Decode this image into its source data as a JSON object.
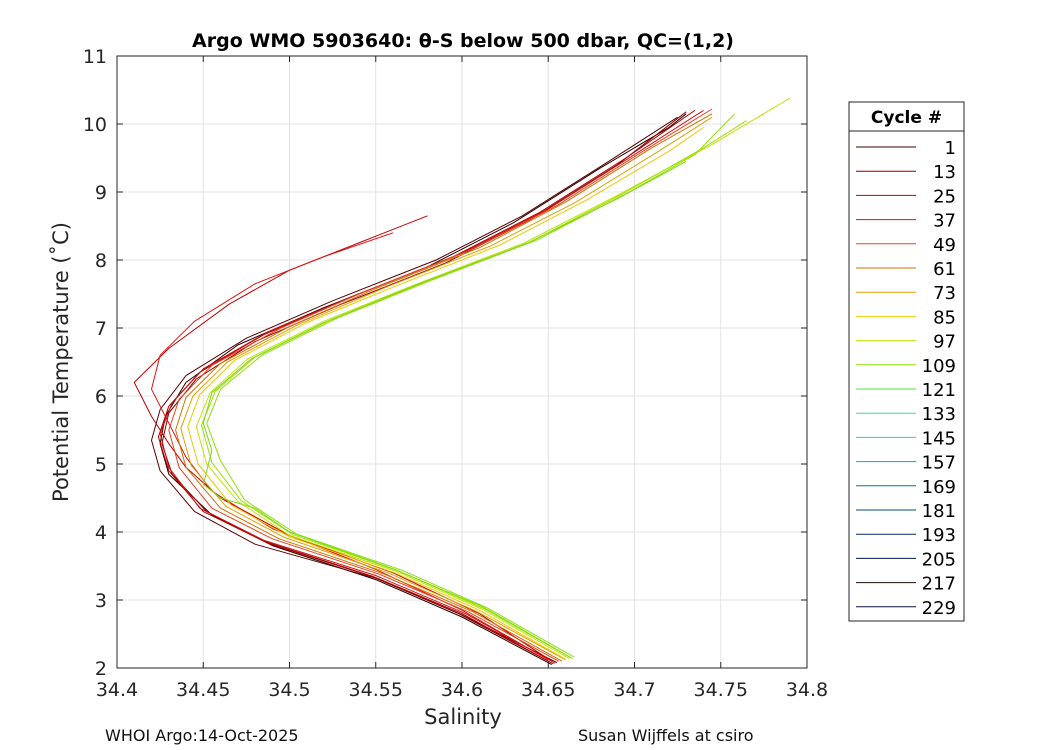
{
  "chart_data": {
    "type": "line",
    "title": "Argo WMO 5903640: θ-S below 500 dbar,  QC=(1,2)",
    "xlabel": "Salinity",
    "ylabel": "Potential Temperature (˚C)",
    "xlim": [
      34.4,
      34.8
    ],
    "ylim": [
      2,
      11
    ],
    "xticks": [
      34.4,
      34.45,
      34.5,
      34.55,
      34.6,
      34.65,
      34.7,
      34.75,
      34.8
    ],
    "xtick_labels": [
      "34.4",
      "34.45",
      "34.5",
      "34.55",
      "34.6",
      "34.65",
      "34.7",
      "34.75",
      "34.8"
    ],
    "yticks": [
      2,
      3,
      4,
      5,
      6,
      7,
      8,
      9,
      10,
      11
    ],
    "ytick_labels": [
      "2",
      "3",
      "4",
      "5",
      "6",
      "7",
      "8",
      "9",
      "10",
      "11"
    ],
    "grid": true,
    "legend": {
      "title": "Cycle #",
      "position": "right",
      "entries": [
        {
          "label": "1",
          "color": "#3a0000"
        },
        {
          "label": "13",
          "color": "#8b0000"
        },
        {
          "label": "25",
          "color": "#c00000"
        },
        {
          "label": "37",
          "color": "#e01010"
        },
        {
          "label": "49",
          "color": "#e8401a"
        },
        {
          "label": "61",
          "color": "#d07000"
        },
        {
          "label": "73",
          "color": "#e0a000"
        },
        {
          "label": "85",
          "color": "#f0d000"
        },
        {
          "label": "97",
          "color": "#c8e000"
        },
        {
          "label": "109",
          "color": "#90e000"
        },
        {
          "label": "121",
          "color": "#50e040"
        },
        {
          "label": "133",
          "color": "#30e0a0"
        },
        {
          "label": "145",
          "color": "#20d0c0"
        },
        {
          "label": "157",
          "color": "#10a8c8"
        },
        {
          "label": "169",
          "color": "#0870a0"
        },
        {
          "label": "181",
          "color": "#084878"
        },
        {
          "label": "193",
          "color": "#0a2a60"
        },
        {
          "label": "205",
          "color": "#061848"
        },
        {
          "label": "217",
          "color": "#200808"
        },
        {
          "label": "229",
          "color": "#0a1040"
        }
      ]
    },
    "series_shape": {
      "deep_end": [
        34.655,
        2.05
      ],
      "minimum": [
        34.43,
        5.5
      ],
      "upper_end": [
        34.74,
        10.2
      ]
    },
    "series": [
      {
        "color": "#2a0000",
        "points": [
          [
            34.652,
            2.05
          ],
          [
            34.6,
            2.75
          ],
          [
            34.55,
            3.3
          ],
          [
            34.49,
            3.8
          ],
          [
            34.455,
            4.25
          ],
          [
            34.43,
            4.85
          ],
          [
            34.425,
            5.3
          ],
          [
            34.428,
            5.7
          ],
          [
            34.44,
            6.2
          ],
          [
            34.47,
            6.75
          ],
          [
            34.52,
            7.3
          ],
          [
            34.58,
            7.9
          ],
          [
            34.63,
            8.55
          ],
          [
            34.68,
            9.35
          ],
          [
            34.72,
            9.95
          ],
          [
            34.73,
            10.15
          ]
        ]
      },
      {
        "color": "#5a0000",
        "points": [
          [
            34.655,
            2.08
          ],
          [
            34.6,
            2.78
          ],
          [
            34.55,
            3.32
          ],
          [
            34.48,
            3.82
          ],
          [
            34.445,
            4.3
          ],
          [
            34.425,
            4.9
          ],
          [
            34.42,
            5.35
          ],
          [
            34.425,
            5.8
          ],
          [
            34.44,
            6.3
          ],
          [
            34.475,
            6.85
          ],
          [
            34.525,
            7.4
          ],
          [
            34.585,
            8.0
          ],
          [
            34.635,
            8.65
          ],
          [
            34.685,
            9.45
          ],
          [
            34.725,
            10.1
          ]
        ]
      },
      {
        "color": "#8b0000",
        "points": [
          [
            34.653,
            2.06
          ],
          [
            34.598,
            2.8
          ],
          [
            34.548,
            3.35
          ],
          [
            34.487,
            3.85
          ],
          [
            34.452,
            4.3
          ],
          [
            34.432,
            4.85
          ],
          [
            34.426,
            5.3
          ],
          [
            34.43,
            5.75
          ],
          [
            34.446,
            6.25
          ],
          [
            34.48,
            6.8
          ],
          [
            34.53,
            7.35
          ],
          [
            34.59,
            7.95
          ],
          [
            34.64,
            8.6
          ],
          [
            34.69,
            9.4
          ],
          [
            34.73,
            10.18
          ]
        ]
      },
      {
        "color": "#b00000",
        "points": [
          [
            34.65,
            2.1
          ],
          [
            34.6,
            2.8
          ],
          [
            34.55,
            3.33
          ],
          [
            34.488,
            3.83
          ],
          [
            34.45,
            4.3
          ],
          [
            34.43,
            4.9
          ],
          [
            34.424,
            5.4
          ],
          [
            34.43,
            5.85
          ],
          [
            34.448,
            6.35
          ],
          [
            34.485,
            6.9
          ],
          [
            34.535,
            7.45
          ],
          [
            34.595,
            8.05
          ],
          [
            34.645,
            8.7
          ],
          [
            34.695,
            9.5
          ],
          [
            34.735,
            10.2
          ]
        ]
      },
      {
        "color": "#c00000",
        "points": [
          [
            34.58,
            8.65
          ],
          [
            34.54,
            8.25
          ],
          [
            34.5,
            7.85
          ],
          [
            34.465,
            7.35
          ],
          [
            34.43,
            6.7
          ],
          [
            34.41,
            6.2
          ],
          [
            34.42,
            5.7
          ],
          [
            34.43,
            5.3
          ],
          [
            34.44,
            4.95
          ],
          [
            34.46,
            4.5
          ],
          [
            34.5,
            3.95
          ],
          [
            34.56,
            3.4
          ],
          [
            34.61,
            2.8
          ],
          [
            34.652,
            2.1
          ]
        ]
      },
      {
        "color": "#d01010",
        "points": [
          [
            34.654,
            2.07
          ],
          [
            34.602,
            2.8
          ],
          [
            34.55,
            3.36
          ],
          [
            34.485,
            3.88
          ],
          [
            34.448,
            4.35
          ],
          [
            34.43,
            4.95
          ],
          [
            34.425,
            5.45
          ],
          [
            34.432,
            5.9
          ],
          [
            34.45,
            6.4
          ],
          [
            34.488,
            6.95
          ],
          [
            34.54,
            7.5
          ],
          [
            34.6,
            8.1
          ],
          [
            34.65,
            8.75
          ],
          [
            34.7,
            9.55
          ],
          [
            34.74,
            10.2
          ]
        ]
      },
      {
        "color": "#e01010",
        "points": [
          [
            34.56,
            8.4
          ],
          [
            34.52,
            8.05
          ],
          [
            34.48,
            7.65
          ],
          [
            34.445,
            7.1
          ],
          [
            34.425,
            6.6
          ],
          [
            34.42,
            6.1
          ],
          [
            34.43,
            5.6
          ],
          [
            34.44,
            5.1
          ],
          [
            34.455,
            4.6
          ],
          [
            34.49,
            4.05
          ],
          [
            34.55,
            3.45
          ],
          [
            34.6,
            2.85
          ],
          [
            34.65,
            2.12
          ]
        ]
      },
      {
        "color": "#e8401a",
        "points": [
          [
            34.656,
            2.1
          ],
          [
            34.604,
            2.82
          ],
          [
            34.552,
            3.38
          ],
          [
            34.49,
            3.9
          ],
          [
            34.455,
            4.35
          ],
          [
            34.436,
            4.95
          ],
          [
            34.43,
            5.5
          ],
          [
            34.436,
            5.95
          ],
          [
            34.455,
            6.45
          ],
          [
            34.495,
            7.0
          ],
          [
            34.545,
            7.55
          ],
          [
            34.605,
            8.15
          ],
          [
            34.655,
            8.8
          ],
          [
            34.705,
            9.6
          ],
          [
            34.745,
            10.22
          ]
        ]
      },
      {
        "color": "#d07000",
        "points": [
          [
            34.658,
            2.1
          ],
          [
            34.606,
            2.83
          ],
          [
            34.555,
            3.38
          ],
          [
            34.494,
            3.9
          ],
          [
            34.46,
            4.35
          ],
          [
            34.44,
            4.95
          ],
          [
            34.434,
            5.5
          ],
          [
            34.44,
            5.98
          ],
          [
            34.46,
            6.48
          ],
          [
            34.5,
            7.02
          ],
          [
            34.55,
            7.58
          ],
          [
            34.61,
            8.18
          ],
          [
            34.66,
            8.85
          ],
          [
            34.71,
            9.65
          ],
          [
            34.745,
            10.15
          ]
        ]
      },
      {
        "color": "#e0a000",
        "points": [
          [
            34.66,
            2.12
          ],
          [
            34.608,
            2.84
          ],
          [
            34.557,
            3.4
          ],
          [
            34.497,
            3.92
          ],
          [
            34.463,
            4.38
          ],
          [
            34.443,
            4.98
          ],
          [
            34.437,
            5.52
          ],
          [
            34.444,
            6.0
          ],
          [
            34.464,
            6.5
          ],
          [
            34.505,
            7.05
          ],
          [
            34.556,
            7.6
          ],
          [
            34.616,
            8.2
          ],
          [
            34.666,
            8.85
          ],
          [
            34.714,
            9.6
          ],
          [
            34.745,
            10.1
          ]
        ]
      },
      {
        "color": "#f0c800",
        "points": [
          [
            34.66,
            2.13
          ],
          [
            34.61,
            2.85
          ],
          [
            34.56,
            3.41
          ],
          [
            34.5,
            3.93
          ],
          [
            34.466,
            4.4
          ],
          [
            34.447,
            5.0
          ],
          [
            34.441,
            5.55
          ],
          [
            34.448,
            6.02
          ],
          [
            34.468,
            6.52
          ],
          [
            34.51,
            7.08
          ],
          [
            34.562,
            7.62
          ],
          [
            34.622,
            8.22
          ],
          [
            34.672,
            8.88
          ],
          [
            34.72,
            9.6
          ],
          [
            34.74,
            9.95
          ]
        ]
      },
      {
        "color": "#c8e000",
        "points": [
          [
            34.662,
            2.14
          ],
          [
            34.612,
            2.86
          ],
          [
            34.562,
            3.42
          ],
          [
            34.5,
            3.95
          ],
          [
            34.47,
            4.45
          ],
          [
            34.452,
            5.0
          ],
          [
            34.446,
            5.55
          ],
          [
            34.454,
            6.05
          ],
          [
            34.476,
            6.55
          ],
          [
            34.52,
            7.1
          ],
          [
            34.574,
            7.65
          ],
          [
            34.636,
            8.25
          ],
          [
            34.69,
            8.95
          ],
          [
            34.745,
            9.7
          ],
          [
            34.79,
            10.38
          ]
        ]
      },
      {
        "color": "#a0e000",
        "points": [
          [
            34.663,
            2.15
          ],
          [
            34.613,
            2.87
          ],
          [
            34.563,
            3.43
          ],
          [
            34.502,
            3.96
          ],
          [
            34.472,
            4.46
          ],
          [
            34.455,
            5.02
          ],
          [
            34.449,
            5.57
          ],
          [
            34.457,
            6.07
          ],
          [
            34.48,
            6.57
          ],
          [
            34.524,
            7.12
          ],
          [
            34.578,
            7.67
          ],
          [
            34.64,
            8.27
          ],
          [
            34.693,
            8.97
          ],
          [
            34.74,
            9.65
          ],
          [
            34.765,
            10.05
          ]
        ]
      },
      {
        "color": "#90e000",
        "points": [
          [
            34.665,
            2.16
          ],
          [
            34.615,
            2.88
          ],
          [
            34.565,
            3.44
          ],
          [
            34.504,
            3.97
          ],
          [
            34.474,
            4.47
          ],
          [
            34.46,
            5.05
          ],
          [
            34.452,
            5.6
          ],
          [
            34.46,
            6.1
          ],
          [
            34.484,
            6.6
          ],
          [
            34.528,
            7.15
          ],
          [
            34.582,
            7.7
          ],
          [
            34.644,
            8.3
          ],
          [
            34.697,
            9.0
          ],
          [
            34.735,
            9.55
          ],
          [
            34.758,
            10.15
          ]
        ]
      },
      {
        "color": "#7cd820",
        "points": [
          [
            34.664,
            2.14
          ],
          [
            34.612,
            2.9
          ],
          [
            34.56,
            3.46
          ],
          [
            34.5,
            4.0
          ],
          [
            34.48,
            4.35
          ],
          [
            34.46,
            4.5
          ],
          [
            34.45,
            4.7
          ],
          [
            34.455,
            5.2
          ],
          [
            34.45,
            5.6
          ],
          [
            34.455,
            6.05
          ],
          [
            34.478,
            6.55
          ],
          [
            34.52,
            7.08
          ],
          [
            34.575,
            7.65
          ],
          [
            34.638,
            8.25
          ],
          [
            34.69,
            8.9
          ],
          [
            34.73,
            9.45
          ]
        ]
      }
    ]
  },
  "footer": {
    "left": "WHOI Argo:14-Oct-2025",
    "right": "Susan Wijffels at csiro"
  }
}
